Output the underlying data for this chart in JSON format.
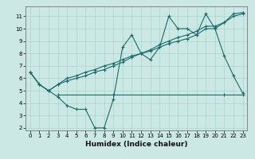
{
  "title": "",
  "xlabel": "Humidex (Indice chaleur)",
  "ylabel": "",
  "background_color": "#cce8e4",
  "grid_color": "#aad4ce",
  "line_color": "#1a6b6b",
  "xlim": [
    -0.5,
    23.5
  ],
  "ylim": [
    1.8,
    11.8
  ],
  "yticks": [
    2,
    3,
    4,
    5,
    6,
    7,
    8,
    9,
    10,
    11
  ],
  "xticks": [
    0,
    1,
    2,
    3,
    4,
    5,
    6,
    7,
    8,
    9,
    10,
    11,
    12,
    13,
    14,
    15,
    16,
    17,
    18,
    19,
    20,
    21,
    22,
    23
  ],
  "series": [
    {
      "x": [
        0,
        1,
        2,
        3,
        4,
        5,
        6,
        7,
        8,
        9,
        10,
        11,
        12,
        13,
        14,
        15,
        16,
        17,
        18,
        19,
        20,
        21,
        22,
        23
      ],
      "y": [
        6.5,
        5.5,
        5.0,
        4.5,
        3.8,
        3.5,
        3.5,
        2.0,
        2.0,
        4.3,
        8.5,
        9.5,
        8.0,
        7.5,
        8.5,
        11.0,
        10.0,
        10.0,
        9.5,
        11.2,
        10.0,
        7.8,
        6.2,
        4.8
      ]
    },
    {
      "x": [
        0,
        1,
        2,
        3,
        4,
        5,
        6,
        7,
        8,
        9,
        10,
        11,
        12,
        13,
        14,
        15,
        16,
        17,
        18,
        19,
        20,
        21,
        22,
        23
      ],
      "y": [
        6.5,
        5.5,
        5.0,
        5.5,
        6.0,
        6.2,
        6.5,
        6.7,
        7.0,
        7.2,
        7.5,
        7.8,
        8.0,
        8.2,
        8.5,
        8.8,
        9.0,
        9.2,
        9.5,
        10.0,
        10.0,
        10.5,
        11.2,
        11.3
      ]
    },
    {
      "x": [
        0,
        1,
        2,
        3,
        4,
        5,
        6,
        7,
        8,
        9,
        10,
        11,
        12,
        13,
        14,
        15,
        16,
        17,
        18,
        19,
        20,
        21,
        22,
        23
      ],
      "y": [
        6.5,
        5.5,
        5.0,
        5.5,
        5.8,
        6.0,
        6.2,
        6.5,
        6.7,
        7.0,
        7.3,
        7.7,
        8.0,
        8.3,
        8.7,
        9.0,
        9.3,
        9.5,
        9.8,
        10.2,
        10.2,
        10.5,
        11.0,
        11.2
      ]
    },
    {
      "x": [
        3,
        9,
        21,
        23
      ],
      "y": [
        4.7,
        4.7,
        4.7,
        4.7
      ]
    }
  ]
}
